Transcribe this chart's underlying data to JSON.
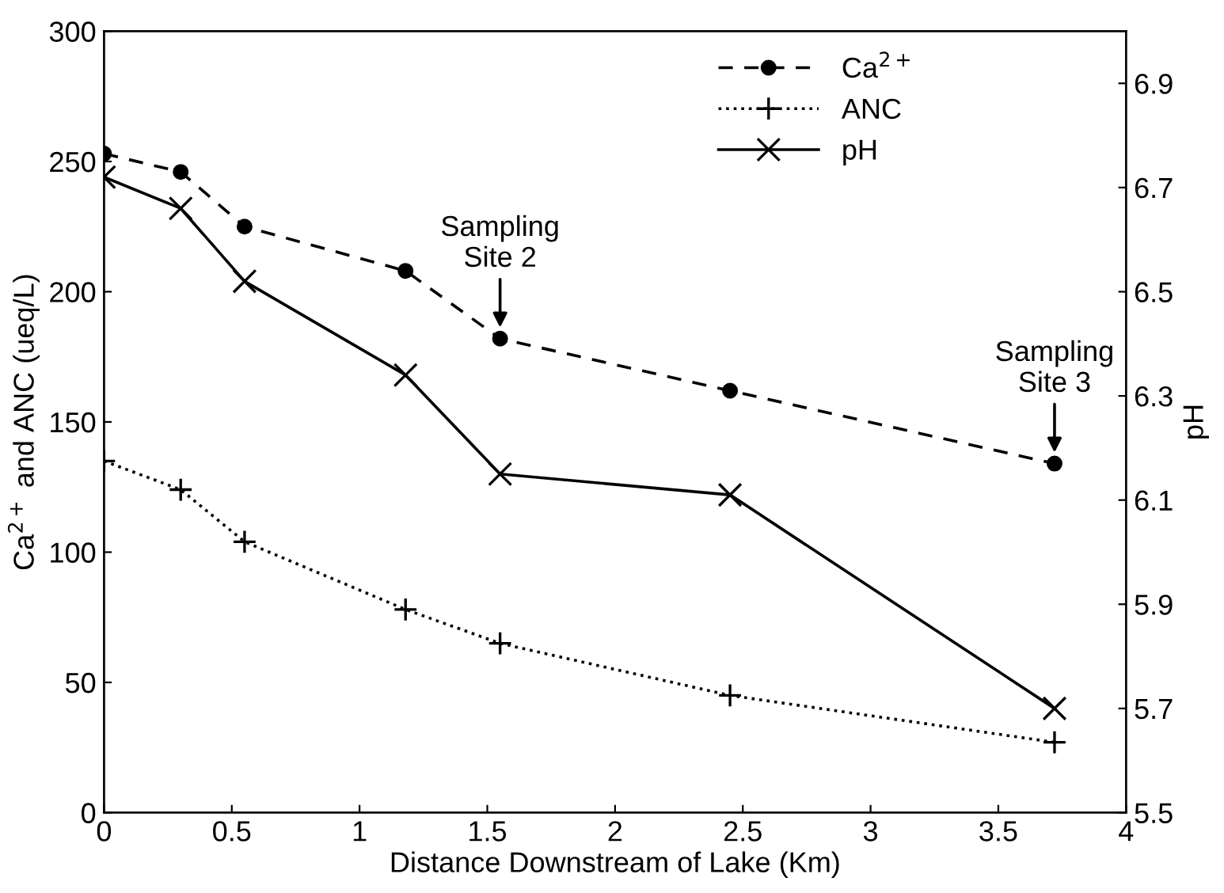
{
  "chart_data": {
    "type": "line",
    "xlabel": "Distance Downstream of Lake (Km)",
    "ylabel": "Ca$^{2+}$ and ANC (ueq/L)",
    "y2label": "pH",
    "xlim": [
      0,
      4
    ],
    "xticks": [
      0,
      0.5,
      1,
      1.5,
      2,
      2.5,
      3,
      3.5,
      4
    ],
    "ylim": [
      0,
      300
    ],
    "yticks": [
      0,
      50,
      100,
      150,
      200,
      250,
      300
    ],
    "y2lim": [
      5.5,
      7.0
    ],
    "y2ticks": [
      5.5,
      5.7,
      5.9,
      6.1,
      6.3,
      6.5,
      6.7,
      6.9
    ],
    "legend": "top right",
    "grid": false,
    "series": [
      {
        "name": "Ca$^{2+}$",
        "color": "#000000",
        "marker": "circle",
        "line_style": "dashed",
        "x": [
          0,
          0.3,
          0.55,
          1.18,
          1.55,
          2.45,
          3.72
        ],
        "values": [
          253,
          246,
          225,
          208,
          182,
          162,
          134
        ]
      },
      {
        "name": "ANC",
        "color": "#000000",
        "marker": "cross",
        "line_style": "dotted",
        "x": [
          0,
          0.3,
          0.55,
          1.18,
          1.55,
          2.45,
          3.72
        ],
        "values": [
          135,
          124,
          104,
          78,
          65,
          45,
          27
        ]
      },
      {
        "name": "pH",
        "color": "#000000",
        "marker": "x",
        "line_style": "solid",
        "axis": "y2",
        "x": [
          0,
          0.3,
          0.55,
          1.18,
          1.55,
          2.45,
          3.72
        ],
        "values": [
          6.72,
          6.66,
          6.52,
          6.34,
          6.15,
          6.11,
          5.7
        ]
      }
    ],
    "annotations": [
      {
        "text": "Sampling\nSite 2",
        "x": 1.55,
        "y": 182
      },
      {
        "text": "Sampling\nSite 3",
        "x": 3.72,
        "y": 134
      }
    ]
  }
}
